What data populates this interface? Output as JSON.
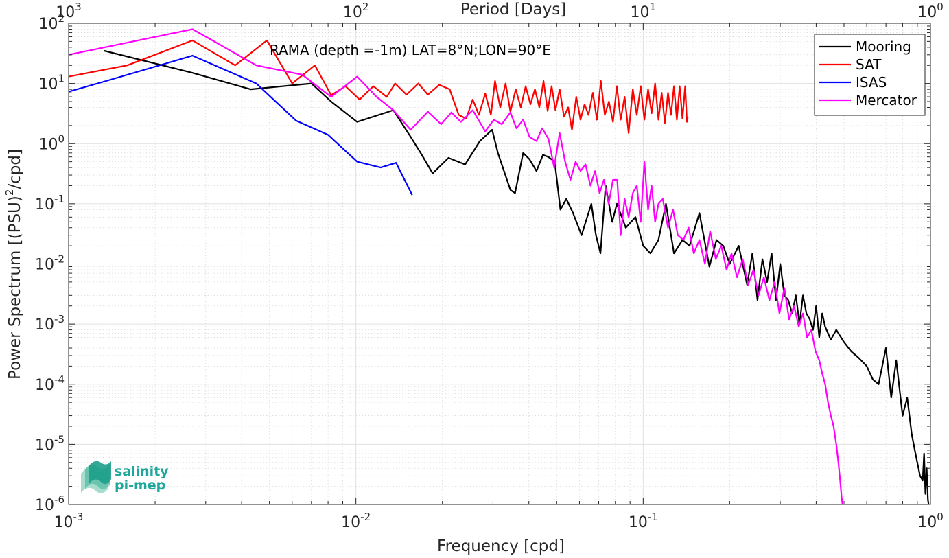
{
  "chart_data": {
    "type": "line",
    "xscale": "log",
    "yscale": "log",
    "xlim": [
      0.001,
      1
    ],
    "ylim": [
      1e-06,
      100
    ],
    "grid": true,
    "minor_grid": true,
    "xlabel": "Frequency [cpd]",
    "ylabel_main": "Power Spectrum [(PSU)",
    "ylabel_sup": "2",
    "ylabel_tail": "/cpd]",
    "top_xlabel": "Period [Days]",
    "annotation": "RAMA (depth =-1m) LAT=8°N;LON=90°E",
    "legend_position": "top-right",
    "x_ticks": [
      {
        "value": 0.001,
        "base": "10",
        "exp": "-3"
      },
      {
        "value": 0.01,
        "base": "10",
        "exp": "-2"
      },
      {
        "value": 0.1,
        "base": "10",
        "exp": "-1"
      },
      {
        "value": 1,
        "base": "10",
        "exp": "0"
      }
    ],
    "top_ticks": [
      {
        "freq": 0.001,
        "base": "10",
        "exp": "3"
      },
      {
        "freq": 0.01,
        "base": "10",
        "exp": "2"
      },
      {
        "freq": 0.1,
        "base": "10",
        "exp": "1"
      },
      {
        "freq": 1,
        "base": "10",
        "exp": "0"
      }
    ],
    "y_ticks": [
      {
        "value": 100,
        "base": "10",
        "exp": "2"
      },
      {
        "value": 10,
        "base": "10",
        "exp": "1"
      },
      {
        "value": 1,
        "base": "10",
        "exp": "0"
      },
      {
        "value": 0.1,
        "base": "10",
        "exp": "-1"
      },
      {
        "value": 0.01,
        "base": "10",
        "exp": "-2"
      },
      {
        "value": 0.001,
        "base": "10",
        "exp": "-3"
      },
      {
        "value": 0.0001,
        "base": "10",
        "exp": "-4"
      },
      {
        "value": 1e-05,
        "base": "10",
        "exp": "-5"
      },
      {
        "value": 1e-06,
        "base": "10",
        "exp": "-6"
      }
    ],
    "series": [
      {
        "name": "Mooring",
        "color": "#000000",
        "x": [
          0.00133,
          0.0027,
          0.0043,
          0.007,
          0.0082,
          0.0101,
          0.0135,
          0.0155,
          0.0168,
          0.0185,
          0.021,
          0.024,
          0.027,
          0.0298,
          0.0312,
          0.0345,
          0.0358,
          0.0382,
          0.0402,
          0.0425,
          0.0448,
          0.0468,
          0.0492,
          0.0515,
          0.054,
          0.057,
          0.061,
          0.066,
          0.0685,
          0.071,
          0.074,
          0.078,
          0.081,
          0.087,
          0.094,
          0.1,
          0.106,
          0.113,
          0.12,
          0.128,
          0.137,
          0.145,
          0.157,
          0.17,
          0.18,
          0.19,
          0.2,
          0.215,
          0.23,
          0.24,
          0.25,
          0.26,
          0.27,
          0.28,
          0.29,
          0.3,
          0.31,
          0.32,
          0.33,
          0.34,
          0.35,
          0.36,
          0.37,
          0.38,
          0.39,
          0.4,
          0.41,
          0.42,
          0.43,
          0.45,
          0.47,
          0.5,
          0.53,
          0.56,
          0.6,
          0.63,
          0.66,
          0.7,
          0.73,
          0.76,
          0.8,
          0.83,
          0.86,
          0.88,
          0.9,
          0.92,
          0.94,
          0.95,
          0.96,
          0.97,
          0.98,
          0.985
        ],
        "y": [
          35,
          15,
          8,
          10,
          5,
          2.3,
          3.6,
          1.3,
          0.7,
          0.32,
          0.58,
          0.45,
          1.1,
          1.7,
          0.7,
          0.17,
          0.15,
          0.7,
          0.55,
          0.35,
          0.65,
          0.6,
          0.5,
          0.08,
          0.12,
          0.07,
          0.03,
          0.1,
          0.03,
          0.015,
          0.2,
          0.05,
          0.1,
          0.04,
          0.06,
          0.02,
          0.015,
          0.025,
          0.1,
          0.015,
          0.025,
          0.02,
          0.07,
          0.009,
          0.025,
          0.02,
          0.01,
          0.02,
          0.0045,
          0.015,
          0.0025,
          0.012,
          0.005,
          0.015,
          0.0025,
          0.01,
          0.003,
          0.0025,
          0.0015,
          0.003,
          0.001,
          0.003,
          0.0015,
          0.0012,
          0.0008,
          0.002,
          0.0006,
          0.0015,
          0.0009,
          0.00055,
          0.0008,
          0.0005,
          0.00035,
          0.00028,
          0.0002,
          0.00012,
          0.0001,
          0.0004,
          6e-05,
          0.00025,
          3e-05,
          6e-05,
          1.5e-05,
          8.4e-06,
          5e-06,
          3e-06,
          2.5e-06,
          7e-06,
          1.5e-06,
          4e-06,
          1.2e-06,
          1e-06
        ]
      },
      {
        "name": "SAT",
        "color": "#ff0000",
        "x": [
          0.001,
          0.0016,
          0.0027,
          0.0038,
          0.0049,
          0.006,
          0.0072,
          0.0082,
          0.0092,
          0.0103,
          0.0115,
          0.0128,
          0.0137,
          0.015,
          0.0165,
          0.0178,
          0.0195,
          0.0212,
          0.0228,
          0.0242,
          0.0255,
          0.0268,
          0.0282,
          0.0295,
          0.0305,
          0.0318,
          0.0332,
          0.0345,
          0.036,
          0.0375,
          0.039,
          0.0405,
          0.042,
          0.0435,
          0.045,
          0.0465,
          0.048,
          0.0495,
          0.0512,
          0.053,
          0.0548,
          0.0565,
          0.0585,
          0.0605,
          0.0625,
          0.0645,
          0.0668,
          0.069,
          0.0712,
          0.0735,
          0.076,
          0.0785,
          0.081,
          0.0835,
          0.0862,
          0.089,
          0.092,
          0.095,
          0.098,
          0.101,
          0.104,
          0.107,
          0.11,
          0.113,
          0.116,
          0.119,
          0.122,
          0.125,
          0.128,
          0.131,
          0.134,
          0.137,
          0.14,
          0.142,
          0.143
        ],
        "y": [
          13,
          20,
          52,
          20,
          52,
          10,
          20,
          6.4,
          9,
          5.4,
          9,
          6,
          10,
          6.5,
          10,
          6.5,
          9.5,
          8,
          3,
          2.6,
          5.4,
          3,
          6.8,
          3,
          11,
          4,
          10,
          3.4,
          8,
          4,
          9,
          4.5,
          8,
          4,
          11,
          3.5,
          9,
          3.6,
          8,
          2.8,
          4,
          1.7,
          6,
          2.5,
          4.5,
          3,
          7,
          2.5,
          11,
          3,
          5,
          2.3,
          9,
          2.5,
          6,
          1.5,
          8,
          3,
          9,
          2.5,
          8,
          3.2,
          10,
          2.5,
          7,
          2.2,
          7,
          3,
          9,
          2.5,
          9,
          2.6,
          9,
          2.3,
          2.8
        ]
      },
      {
        "name": "ISAS",
        "color": "#0000ff",
        "x": [
          0.001,
          0.00135,
          0.0027,
          0.0045,
          0.0062,
          0.008,
          0.0101,
          0.0122,
          0.0138,
          0.0157
        ],
        "y": [
          7.3,
          11,
          29,
          10,
          2.4,
          1.4,
          0.5,
          0.4,
          0.48,
          0.14
        ]
      },
      {
        "name": "Mercator",
        "color": "#ff00ff",
        "x": [
          0.001,
          0.0027,
          0.0045,
          0.0065,
          0.0082,
          0.0101,
          0.0118,
          0.0135,
          0.0155,
          0.0178,
          0.0198,
          0.0215,
          0.0232,
          0.0255,
          0.0282,
          0.0302,
          0.0322,
          0.0345,
          0.0362,
          0.0382,
          0.0402,
          0.0425,
          0.0445,
          0.0468,
          0.049,
          0.0512,
          0.0535,
          0.0558,
          0.0582,
          0.0605,
          0.063,
          0.0655,
          0.068,
          0.0705,
          0.073,
          0.0758,
          0.0785,
          0.0812,
          0.0835,
          0.0862,
          0.089,
          0.092,
          0.095,
          0.098,
          0.101,
          0.104,
          0.107,
          0.11,
          0.113,
          0.117,
          0.122,
          0.127,
          0.132,
          0.138,
          0.144,
          0.15,
          0.157,
          0.164,
          0.171,
          0.179,
          0.187,
          0.195,
          0.203,
          0.212,
          0.222,
          0.232,
          0.242,
          0.252,
          0.263,
          0.275,
          0.287,
          0.298,
          0.31,
          0.322,
          0.335,
          0.348,
          0.36,
          0.372,
          0.385,
          0.398,
          0.41,
          0.42,
          0.43,
          0.44,
          0.45,
          0.46,
          0.47,
          0.478,
          0.485,
          0.49,
          0.494
        ],
        "y": [
          30,
          80,
          20,
          14,
          6,
          13,
          6,
          3.6,
          1.7,
          3.4,
          2.1,
          3.3,
          2.3,
          3.6,
          1.6,
          2.5,
          2.1,
          3.3,
          1.8,
          2.5,
          1.3,
          1.1,
          1.8,
          1.2,
          0.4,
          1.5,
          0.5,
          0.25,
          0.5,
          0.35,
          0.45,
          0.2,
          0.35,
          0.15,
          0.25,
          0.1,
          0.25,
          0.25,
          0.03,
          0.12,
          0.06,
          0.15,
          0.2,
          0.05,
          0.5,
          0.08,
          0.2,
          0.05,
          0.1,
          0.12,
          0.04,
          0.08,
          0.03,
          0.025,
          0.04,
          0.015,
          0.025,
          0.01,
          0.035,
          0.012,
          0.02,
          0.008,
          0.015,
          0.006,
          0.012,
          0.0045,
          0.008,
          0.003,
          0.006,
          0.0025,
          0.005,
          0.0015,
          0.004,
          0.0012,
          0.002,
          0.0009,
          0.0015,
          0.0006,
          0.0008,
          0.00035,
          0.00025,
          0.00015,
          0.0001,
          5e-05,
          3e-05,
          2e-05,
          1e-05,
          5e-06,
          2.5e-06,
          1.4e-06,
          1e-06
        ]
      }
    ]
  },
  "logo": {
    "line1": "salinity",
    "line2": "pi-mep"
  }
}
